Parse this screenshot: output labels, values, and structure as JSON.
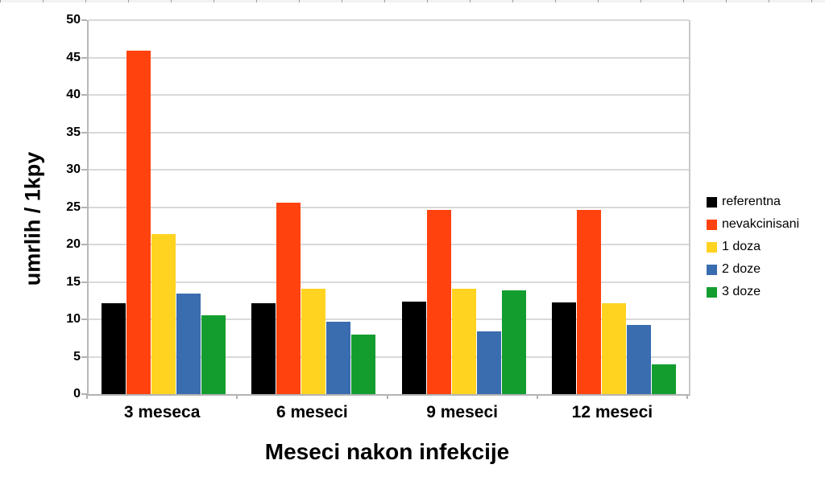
{
  "chart_data": {
    "type": "bar",
    "title": "",
    "xlabel": "Meseci nakon infekcije",
    "ylabel": "umrlih / 1kpy",
    "categories": [
      "3 meseca",
      "6 meseci",
      "9 meseci",
      "12 meseci"
    ],
    "series": [
      {
        "name": "referentna",
        "color": "#000000",
        "values": [
          12.1,
          12.1,
          12.4,
          12.3
        ]
      },
      {
        "name": "nevakcinisani",
        "color": "#FF420E",
        "values": [
          45.9,
          25.6,
          24.6,
          24.6
        ]
      },
      {
        "name": "1 doza",
        "color": "#FFD320",
        "values": [
          21.4,
          14.1,
          14.1,
          12.2
        ]
      },
      {
        "name": "2 doze",
        "color": "#3A6CB0",
        "values": [
          13.4,
          9.7,
          8.4,
          9.3
        ]
      },
      {
        "name": "3 doze",
        "color": "#149D2F",
        "values": [
          10.5,
          8.0,
          13.9,
          4.0
        ]
      }
    ],
    "ylim": [
      0,
      50
    ],
    "ytick_step": 5,
    "grid": true,
    "legend_position": "right",
    "gridline_color": "#d9d9d9"
  }
}
